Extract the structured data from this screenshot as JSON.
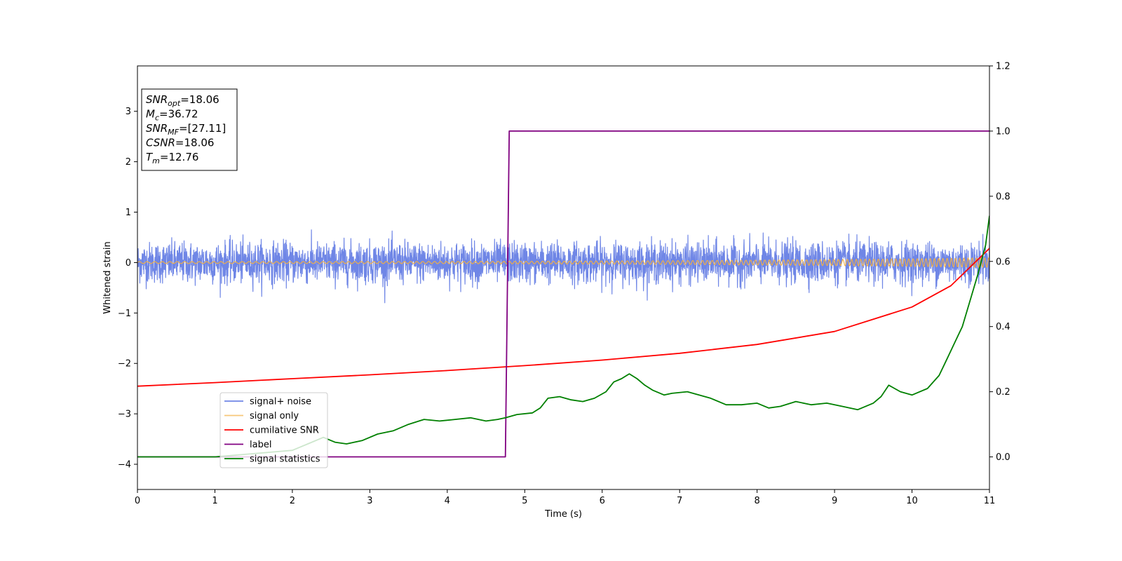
{
  "chart_data": {
    "type": "line",
    "xlabel": "Time (s)",
    "ylabel_left": "Whitened strain",
    "ylabel_right": "",
    "xlim": [
      0,
      11
    ],
    "ylim_left": [
      -4.5,
      3.9
    ],
    "ylim_right": [
      -0.1,
      1.2
    ],
    "x_ticks": [
      0,
      1,
      2,
      3,
      4,
      5,
      6,
      7,
      8,
      9,
      10,
      11
    ],
    "y_left_ticks": [
      3,
      2,
      1,
      0,
      -1,
      -2,
      -3,
      -4
    ],
    "y_left_tick_labels": [
      "3",
      "2",
      "1",
      "0",
      "−1",
      "−2",
      "−3",
      "−4"
    ],
    "y_right_ticks": [
      1.2,
      1.0,
      0.8,
      0.6,
      0.4,
      0.2,
      0.0
    ],
    "y_right_tick_labels": [
      "1.2",
      "1.0",
      "0.8",
      "0.6",
      "0.4",
      "0.2",
      "0.0"
    ],
    "grid": false,
    "legend_position": "lower-left",
    "annotation": {
      "lines": [
        {
          "base": "SNR",
          "sub": "opt",
          "value": "=18.06"
        },
        {
          "base": "M",
          "sub": "c",
          "value": "=36.72"
        },
        {
          "base": "SNR",
          "sub": "MF",
          "value": "=[27.11]"
        },
        {
          "base": "CSNR",
          "sub": "",
          "value": "=18.06"
        },
        {
          "base": "T",
          "sub": "m",
          "value": "=12.76"
        }
      ]
    },
    "series": [
      {
        "name": "signal+ noise",
        "axis": "left",
        "color": "#6f86e6",
        "style": "noise",
        "amplitude": 0.32,
        "range": [
          -0.8,
          0.8
        ]
      },
      {
        "name": "signal only",
        "axis": "left",
        "color": "#f5b041",
        "style": "chirp",
        "amplitude_start": 0.02,
        "amplitude_end": 0.1
      },
      {
        "name": "cumilative SNR",
        "axis": "right",
        "color": "#ff0000",
        "x": [
          0,
          1,
          2,
          3,
          4,
          5,
          6,
          7,
          8,
          9,
          10,
          10.5,
          11
        ],
        "y": [
          0.217,
          0.228,
          0.24,
          0.252,
          0.265,
          0.28,
          0.297,
          0.318,
          0.345,
          0.385,
          0.46,
          0.525,
          0.64
        ]
      },
      {
        "name": "label",
        "axis": "right",
        "color": "#800080",
        "x": [
          0,
          4.75,
          4.8,
          11
        ],
        "y": [
          0.0,
          0.0,
          1.0,
          1.0
        ]
      },
      {
        "name": "signal statistics",
        "axis": "right",
        "color": "#008000",
        "x": [
          0,
          0.5,
          1.0,
          1.5,
          2.0,
          2.2,
          2.4,
          2.55,
          2.7,
          2.9,
          3.1,
          3.3,
          3.5,
          3.7,
          3.9,
          4.1,
          4.3,
          4.5,
          4.65,
          4.75,
          4.9,
          5.1,
          5.2,
          5.3,
          5.45,
          5.6,
          5.75,
          5.9,
          6.05,
          6.15,
          6.25,
          6.35,
          6.45,
          6.55,
          6.65,
          6.8,
          6.9,
          7.1,
          7.25,
          7.4,
          7.6,
          7.8,
          8.0,
          8.15,
          8.3,
          8.5,
          8.7,
          8.9,
          9.1,
          9.3,
          9.5,
          9.6,
          9.7,
          9.85,
          10.0,
          10.2,
          10.35,
          10.45,
          10.55,
          10.65,
          10.75,
          10.85,
          10.95,
          11.0
        ],
        "y": [
          0.0,
          0.0,
          0.0,
          0.01,
          0.02,
          0.04,
          0.06,
          0.045,
          0.04,
          0.05,
          0.07,
          0.08,
          0.1,
          0.115,
          0.11,
          0.115,
          0.12,
          0.11,
          0.115,
          0.12,
          0.13,
          0.135,
          0.15,
          0.18,
          0.185,
          0.175,
          0.17,
          0.18,
          0.2,
          0.23,
          0.24,
          0.255,
          0.24,
          0.22,
          0.205,
          0.19,
          0.195,
          0.2,
          0.19,
          0.18,
          0.16,
          0.16,
          0.165,
          0.15,
          0.155,
          0.17,
          0.16,
          0.165,
          0.155,
          0.145,
          0.165,
          0.185,
          0.22,
          0.2,
          0.19,
          0.21,
          0.25,
          0.3,
          0.35,
          0.4,
          0.48,
          0.56,
          0.65,
          0.74
        ]
      }
    ]
  }
}
